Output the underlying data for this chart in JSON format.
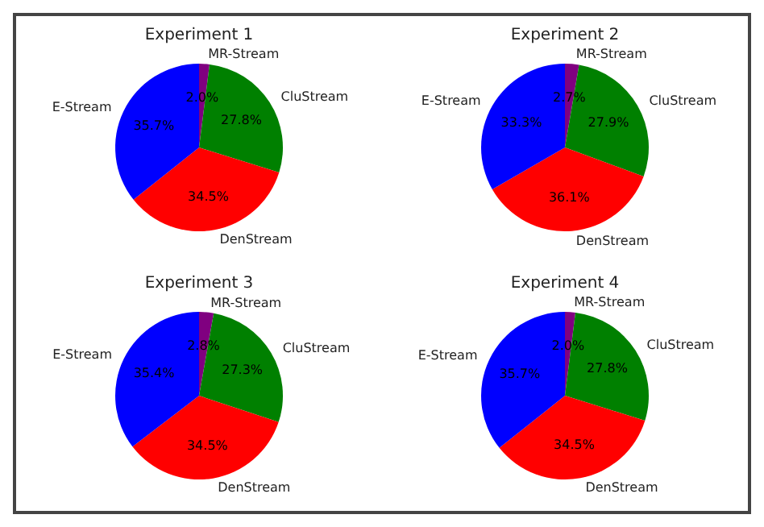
{
  "chart_data": [
    {
      "type": "pie",
      "title": "Experiment 1",
      "categories": [
        "MR-Stream",
        "CluStream",
        "DenStream",
        "E-Stream"
      ],
      "values": [
        2.0,
        27.8,
        34.5,
        35.7
      ],
      "colors": [
        "#800080",
        "#008000",
        "#ff0000",
        "#0000ff"
      ],
      "value_labels": [
        "2.0%",
        "27.8%",
        "34.5%",
        "35.7%"
      ]
    },
    {
      "type": "pie",
      "title": "Experiment 2",
      "categories": [
        "MR-Stream",
        "CluStream",
        "DenStream",
        "E-Stream"
      ],
      "values": [
        2.7,
        27.9,
        36.1,
        33.3
      ],
      "colors": [
        "#800080",
        "#008000",
        "#ff0000",
        "#0000ff"
      ],
      "value_labels": [
        "2.7%",
        "27.9%",
        "36.1%",
        "33.3%"
      ]
    },
    {
      "type": "pie",
      "title": "Experiment 3",
      "categories": [
        "MR-Stream",
        "CluStream",
        "DenStream",
        "E-Stream"
      ],
      "values": [
        2.8,
        27.3,
        34.5,
        35.4
      ],
      "colors": [
        "#800080",
        "#008000",
        "#ff0000",
        "#0000ff"
      ],
      "value_labels": [
        "2.8%",
        "27.3%",
        "34.5%",
        "35.4%"
      ]
    },
    {
      "type": "pie",
      "title": "Experiment 4",
      "categories": [
        "MR-Stream",
        "CluStream",
        "DenStream",
        "E-Stream"
      ],
      "values": [
        2.0,
        27.8,
        34.5,
        35.7
      ],
      "colors": [
        "#800080",
        "#008000",
        "#ff0000",
        "#0000ff"
      ],
      "value_labels": [
        "2.0%",
        "27.8%",
        "34.5%",
        "35.7%"
      ]
    }
  ]
}
